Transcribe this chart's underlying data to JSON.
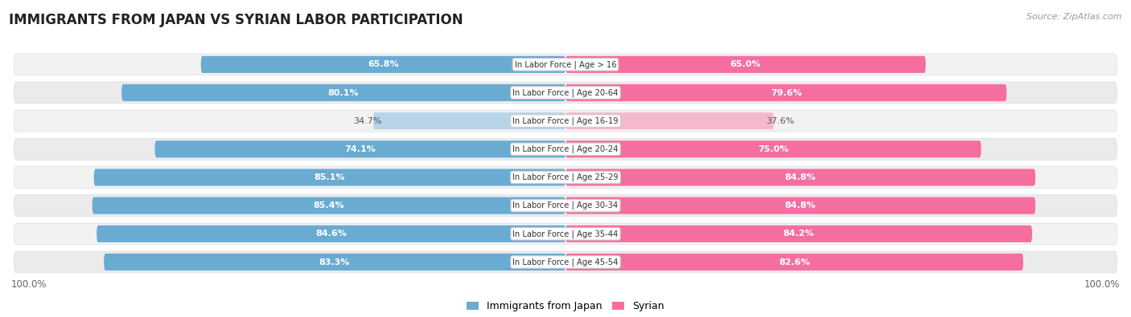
{
  "title": "IMMIGRANTS FROM JAPAN VS SYRIAN LABOR PARTICIPATION",
  "source": "Source: ZipAtlas.com",
  "categories": [
    "In Labor Force | Age > 16",
    "In Labor Force | Age 20-64",
    "In Labor Force | Age 16-19",
    "In Labor Force | Age 20-24",
    "In Labor Force | Age 25-29",
    "In Labor Force | Age 30-34",
    "In Labor Force | Age 35-44",
    "In Labor Force | Age 45-54"
  ],
  "japan_values": [
    65.8,
    80.1,
    34.7,
    74.1,
    85.1,
    85.4,
    84.6,
    83.3
  ],
  "syrian_values": [
    65.0,
    79.6,
    37.6,
    75.0,
    84.8,
    84.8,
    84.2,
    82.6
  ],
  "japan_color": "#6aabd2",
  "japan_color_light": "#b8d4e8",
  "syrian_color": "#f46fa0",
  "syrian_color_light": "#f7b8cf",
  "row_bg_color": "#f0f0f0",
  "row_alt_bg_color": "#e8e8e8",
  "max_value": 100.0,
  "label_fontsize": 8.0,
  "title_fontsize": 12,
  "legend_fontsize": 9,
  "axis_label_fontsize": 8.5
}
